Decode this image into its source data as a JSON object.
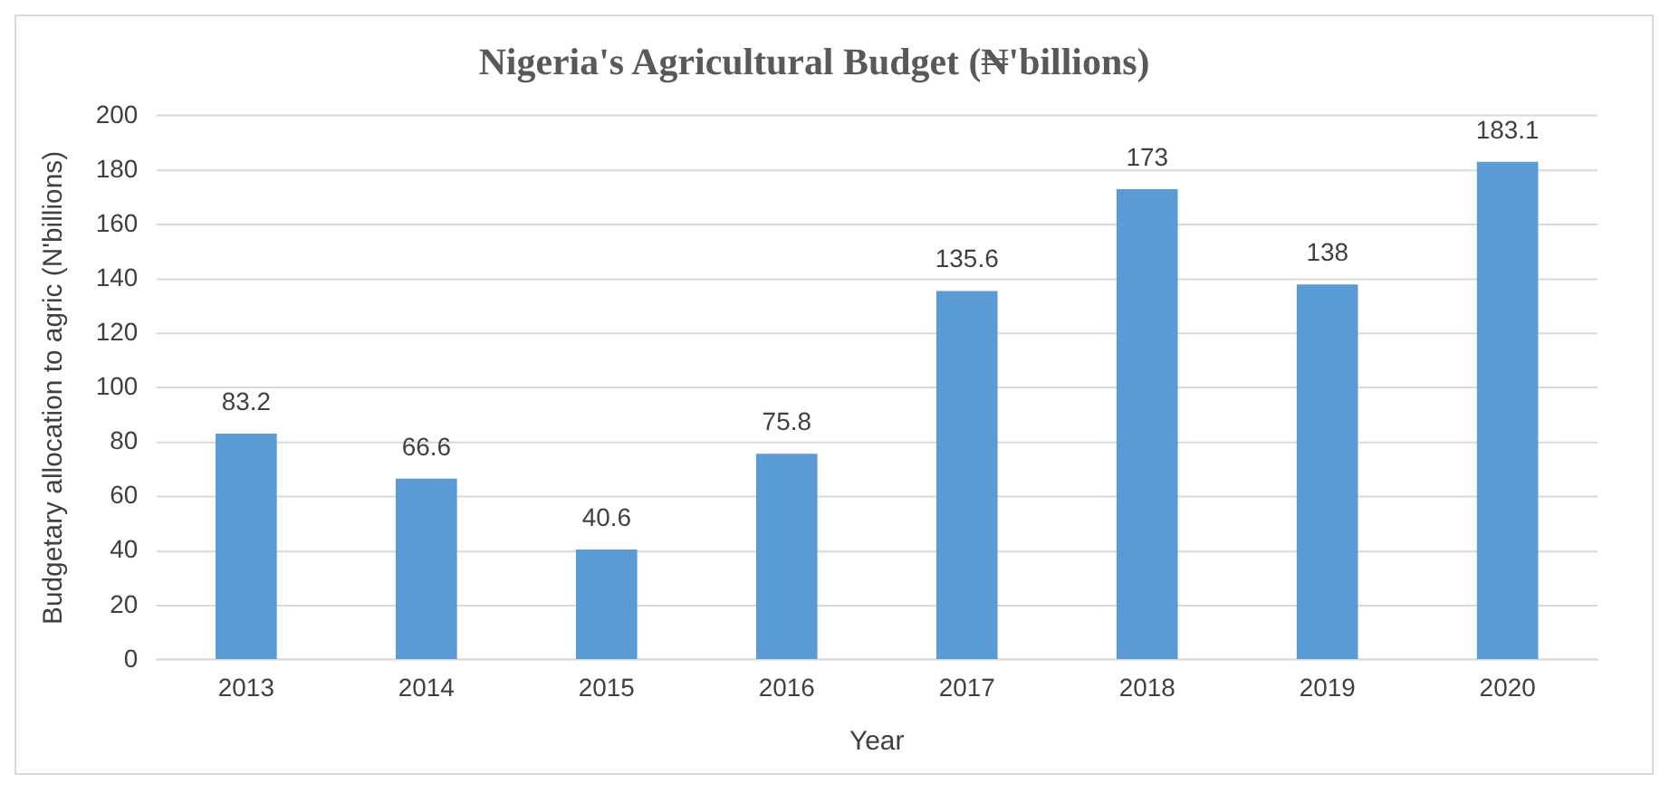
{
  "chart_data": {
    "type": "bar",
    "title": "Nigeria's Agricultural Budget (₦'billions)",
    "xlabel": "Year",
    "ylabel": "Budgetary allocation to agric (N'billions)",
    "categories": [
      "2013",
      "2014",
      "2015",
      "2016",
      "2017",
      "2018",
      "2019",
      "2020"
    ],
    "values": [
      83.2,
      66.6,
      40.6,
      75.8,
      135.6,
      173,
      138,
      183.1
    ],
    "color": "#5b9bd5",
    "ylim": [
      0,
      200
    ],
    "yticks": [
      0,
      20,
      40,
      60,
      80,
      100,
      120,
      140,
      160,
      180,
      200
    ],
    "grid": "y",
    "data_labels": true,
    "legend": false
  }
}
